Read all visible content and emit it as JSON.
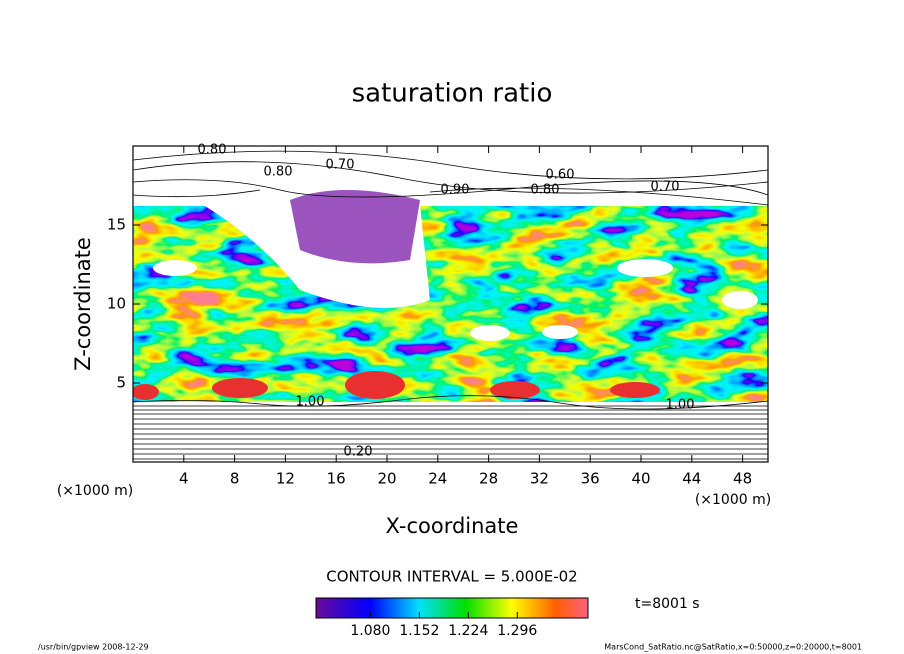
{
  "chart_data": {
    "type": "contour",
    "title": "saturation ratio",
    "x_label": "X-coordinate",
    "y_label": "Z-coordinate",
    "x_unit": "(×1000 m)",
    "xlim": [
      0,
      50
    ],
    "ylim": [
      0,
      20
    ],
    "xticks": [
      4,
      8,
      12,
      16,
      20,
      24,
      28,
      32,
      36,
      40,
      44,
      48
    ],
    "yticks": [
      5,
      10,
      15
    ],
    "contour_labels": [
      "0.80",
      "0.80",
      "0.70",
      "0.90",
      "0.60",
      "0.80",
      "0.70",
      "1.00",
      "1.00",
      "0.20"
    ],
    "contour_interval_text": "CONTOUR INTERVAL = 5.000E-02",
    "colorbar": {
      "lim": [
        1.0,
        1.4
      ],
      "ticks": [
        {
          "value": 1.08,
          "label": "1.080"
        },
        {
          "value": 1.152,
          "label": "1.152"
        },
        {
          "value": 1.224,
          "label": "1.224"
        },
        {
          "value": 1.296,
          "label": "1.296"
        }
      ]
    },
    "time_label": "t=8001 s",
    "footer_left": "/usr/bin/gpview   2008-12-29",
    "footer_right": "MarsCond_SatRatio.nc@SatRatio,x=0:50000,z=0:20000,t=8001"
  }
}
